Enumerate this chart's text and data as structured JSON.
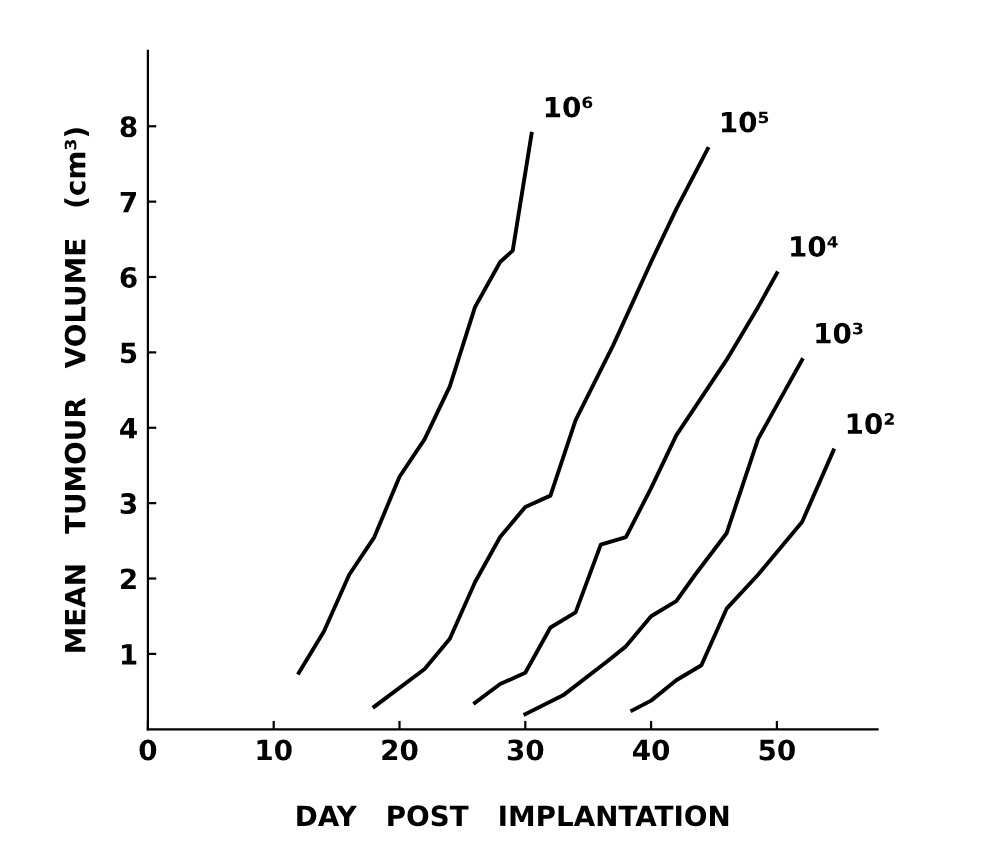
{
  "chart_data": {
    "type": "line",
    "xlabel": "DAY   POST   IMPLANTATION",
    "ylabel": "MEAN   TUMOUR   VOLUME   (cm³)",
    "xlim": [
      0,
      58
    ],
    "xticks": [
      0,
      10,
      20,
      30,
      40,
      50
    ],
    "ylim": [
      0,
      9
    ],
    "yticks": [
      1,
      2,
      3,
      4,
      5,
      6,
      7,
      8
    ],
    "grid": false,
    "legend": false,
    "marker": "none",
    "line_style": "solid",
    "series": [
      {
        "name": "10⁶",
        "color": "#000000",
        "x": [
          12,
          14,
          16,
          18,
          20,
          22,
          24,
          26,
          28,
          29,
          30.5
        ],
        "values": [
          0.75,
          1.3,
          2.05,
          2.55,
          3.35,
          3.85,
          4.55,
          5.6,
          6.2,
          6.35,
          7.9
        ]
      },
      {
        "name": "10⁵",
        "color": "#000000",
        "x": [
          18,
          22,
          24,
          26,
          28,
          30,
          32,
          34,
          37,
          40,
          42,
          44.5
        ],
        "values": [
          0.3,
          0.8,
          1.2,
          1.95,
          2.55,
          2.95,
          3.1,
          4.1,
          5.1,
          6.2,
          6.9,
          7.7
        ]
      },
      {
        "name": "10⁴",
        "color": "#000000",
        "x": [
          26,
          28,
          30,
          32,
          34,
          36,
          38,
          40,
          42,
          46,
          48.5,
          50
        ],
        "values": [
          0.35,
          0.6,
          0.75,
          1.35,
          1.55,
          2.45,
          2.55,
          3.2,
          3.9,
          4.9,
          5.6,
          6.05
        ]
      },
      {
        "name": "10³",
        "color": "#000000",
        "x": [
          30,
          33,
          36.5,
          38,
          40,
          42,
          43.5,
          46,
          48.5,
          50,
          52
        ],
        "values": [
          0.2,
          0.45,
          0.9,
          1.1,
          1.5,
          1.7,
          2.05,
          2.6,
          3.85,
          4.3,
          4.9
        ]
      },
      {
        "name": "10²",
        "color": "#000000",
        "x": [
          38.5,
          40,
          42,
          44,
          46,
          48.5,
          52,
          54.5
        ],
        "values": [
          0.25,
          0.38,
          0.65,
          0.85,
          1.6,
          2.05,
          2.75,
          3.7
        ]
      }
    ]
  }
}
